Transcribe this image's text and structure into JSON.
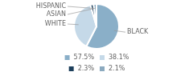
{
  "chart_data": {
    "type": "pie",
    "categories": [
      "BLACK",
      "WHITE",
      "ASIAN",
      "HISPANIC"
    ],
    "values": [
      57.5,
      38.1,
      2.3,
      2.1
    ],
    "value_labels": [
      "57.5%",
      "38.1%",
      "2.3%",
      "2.1%"
    ],
    "colors": [
      "#8aafc8",
      "#c5d9e8",
      "#1d3f5c",
      "#8caabf"
    ],
    "legend": "bottom"
  }
}
